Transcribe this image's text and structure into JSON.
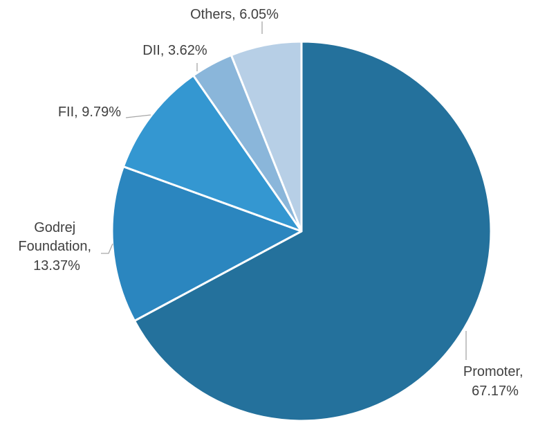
{
  "chart_data": {
    "type": "pie",
    "title": "",
    "slices": [
      {
        "name": "Promoter",
        "value": 67.17,
        "label": [
          "Promoter,",
          "67.17%"
        ],
        "color": "#24719c"
      },
      {
        "name": "Godrej Foundation",
        "value": 13.37,
        "label": [
          "Godrej",
          "Foundation,",
          "13.37%"
        ],
        "color": "#2b86bf"
      },
      {
        "name": "FII",
        "value": 9.79,
        "label": [
          "FII, 9.79%"
        ],
        "color": "#3497d1"
      },
      {
        "name": "DII",
        "value": 3.62,
        "label": [
          "DII, 3.62%"
        ],
        "color": "#8ab6da"
      },
      {
        "name": "Others",
        "value": 6.05,
        "label": [
          "Others, 6.05%"
        ],
        "color": "#b7cfe6"
      }
    ],
    "start_angle": "12 o'clock",
    "direction": "clockwise",
    "legend": "none",
    "labels": "outside with leader lines"
  }
}
